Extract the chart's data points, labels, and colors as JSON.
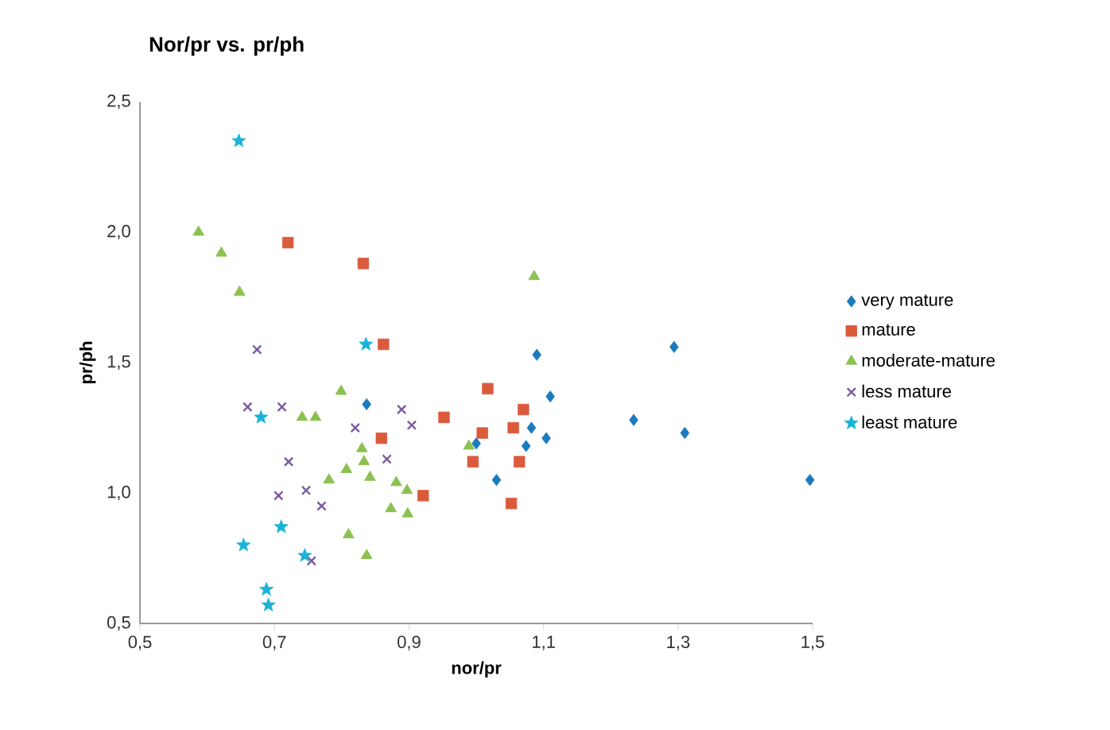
{
  "chart_data": {
    "type": "scatter",
    "title": "Nor/pr vs. pr/ph",
    "xlabel": "nor/pr",
    "ylabel": "pr/ph",
    "xlim": [
      0.5,
      1.5
    ],
    "ylim": [
      0.5,
      2.5
    ],
    "xticks": [
      {
        "value": 0.5,
        "label": "0,5"
      },
      {
        "value": 0.7,
        "label": "0,7"
      },
      {
        "value": 0.9,
        "label": "0,9"
      },
      {
        "value": 1.1,
        "label": "1,1"
      },
      {
        "value": 1.3,
        "label": "1,3"
      },
      {
        "value": 1.5,
        "label": "1,5"
      }
    ],
    "yticks": [
      {
        "value": 0.5,
        "label": "0,5"
      },
      {
        "value": 1.0,
        "label": "1,0"
      },
      {
        "value": 1.5,
        "label": "1,5"
      },
      {
        "value": 2.0,
        "label": "2,0"
      },
      {
        "value": 2.5,
        "label": "2,5"
      }
    ],
    "legend": "right",
    "grid": false,
    "series": [
      {
        "name": "very mature",
        "color": "#1a7bbf",
        "marker": "diamond",
        "x": [
          0.837,
          1.0,
          1.03,
          1.09,
          1.294,
          1.11,
          1.234,
          1.31,
          1.082,
          1.104,
          1.074,
          1.496
        ],
        "values": [
          1.34,
          1.19,
          1.05,
          1.53,
          1.56,
          1.37,
          1.28,
          1.23,
          1.25,
          1.21,
          1.18,
          1.05
        ]
      },
      {
        "name": "mature",
        "color": "#db5a3c",
        "marker": "square",
        "x": [
          0.72,
          0.832,
          0.862,
          0.859,
          0.921,
          0.952,
          1.017,
          1.009,
          0.995,
          1.07,
          1.055,
          1.064,
          1.052
        ],
        "values": [
          1.96,
          1.88,
          1.57,
          1.21,
          0.99,
          1.29,
          1.4,
          1.23,
          1.12,
          1.32,
          1.25,
          1.12,
          0.96
        ]
      },
      {
        "name": "moderate-mature",
        "color": "#8cc152",
        "marker": "triangle",
        "x": [
          0.587,
          0.621,
          0.648,
          0.799,
          0.741,
          0.761,
          0.83,
          0.833,
          0.781,
          0.807,
          0.842,
          0.881,
          0.897,
          0.873,
          0.898,
          0.81,
          0.837,
          0.989,
          1.086
        ],
        "values": [
          2.0,
          1.92,
          1.77,
          1.39,
          1.29,
          1.29,
          1.17,
          1.12,
          1.05,
          1.09,
          1.06,
          1.04,
          1.01,
          0.94,
          0.92,
          0.84,
          0.76,
          1.18,
          1.83
        ]
      },
      {
        "name": "less mature",
        "color": "#7b5a9e",
        "marker": "cross",
        "x": [
          0.674,
          0.66,
          0.711,
          0.721,
          0.706,
          0.747,
          0.77,
          0.755,
          0.82,
          0.889,
          0.904,
          0.867
        ],
        "values": [
          1.55,
          1.33,
          1.33,
          1.12,
          0.99,
          1.01,
          0.95,
          0.74,
          1.25,
          1.32,
          1.26,
          1.13
        ]
      },
      {
        "name": "least mature",
        "color": "#1bb3d6",
        "marker": "star",
        "x": [
          0.647,
          0.836,
          0.68,
          0.654,
          0.71,
          0.745,
          0.688,
          0.691
        ],
        "values": [
          2.35,
          1.57,
          1.29,
          0.8,
          0.87,
          0.76,
          0.63,
          0.57
        ]
      }
    ]
  }
}
